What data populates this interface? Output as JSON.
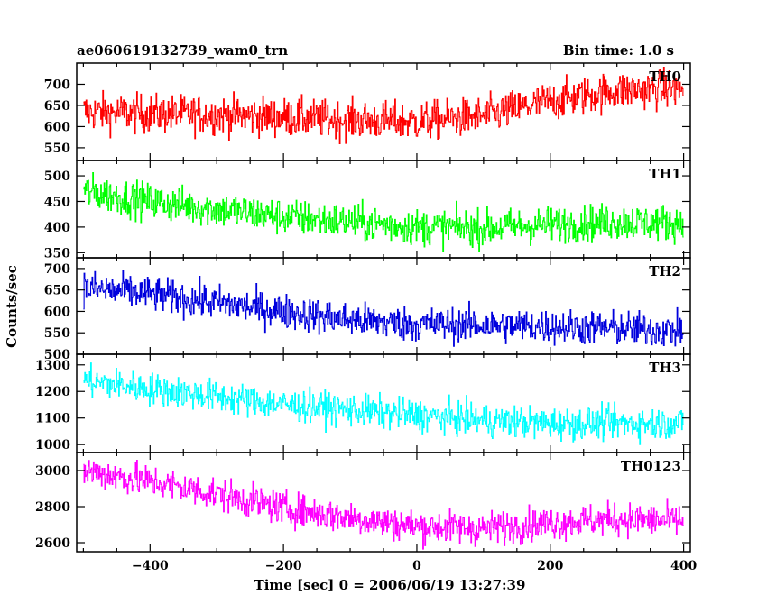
{
  "chart_data": {
    "type": "line",
    "title": "ae060619132739_wam0_trn",
    "subtitle": "Bin time: 1.0 s",
    "xlabel": "Time [sec] 0 = 2006/06/19 13:27:39",
    "ylabel": "Counts/sec",
    "xlim": [
      -510,
      410
    ],
    "x_ticks": [
      -400,
      -200,
      0,
      200,
      400
    ],
    "x_tick_labels": [
      "−400",
      "−200",
      "0",
      "200",
      "400"
    ],
    "x_start": -500,
    "x_end": 399,
    "x_step": 1,
    "grid": false,
    "series": [
      {
        "name": "TH0",
        "color": "#ff0000",
        "ylim": [
          520,
          750
        ],
        "y_ticks": [
          550,
          600,
          650,
          700
        ],
        "trend_x": [
          -500,
          -400,
          -300,
          -200,
          -100,
          0,
          100,
          200,
          300,
          400
        ],
        "trend_y": [
          635,
          630,
          628,
          622,
          615,
          612,
          625,
          660,
          685,
          690
        ],
        "noise_amplitude": 45
      },
      {
        "name": "TH1",
        "color": "#00ff00",
        "ylim": [
          340,
          530
        ],
        "y_ticks": [
          350,
          400,
          450,
          500
        ],
        "trend_x": [
          -500,
          -400,
          -300,
          -200,
          -100,
          0,
          100,
          200,
          300,
          400
        ],
        "trend_y": [
          470,
          450,
          435,
          420,
          410,
          400,
          398,
          405,
          410,
          408
        ],
        "noise_amplitude": 35
      },
      {
        "name": "TH2",
        "color": "#0000dd",
        "ylim": [
          500,
          725
        ],
        "y_ticks": [
          500,
          550,
          600,
          650,
          700
        ],
        "trend_x": [
          -500,
          -400,
          -300,
          -200,
          -100,
          0,
          100,
          200,
          300,
          400
        ],
        "trend_y": [
          655,
          640,
          620,
          600,
          580,
          570,
          568,
          565,
          560,
          555
        ],
        "noise_amplitude": 40
      },
      {
        "name": "TH3",
        "color": "#00ffff",
        "ylim": [
          970,
          1340
        ],
        "y_ticks": [
          1000,
          1100,
          1200,
          1300
        ],
        "trend_x": [
          -500,
          -400,
          -300,
          -200,
          -100,
          0,
          100,
          200,
          300,
          400
        ],
        "trend_y": [
          1240,
          1210,
          1180,
          1150,
          1130,
          1110,
          1090,
          1080,
          1080,
          1080
        ],
        "noise_amplitude": 60
      },
      {
        "name": "TH0123",
        "color": "#ff00ff",
        "ylim": [
          2550,
          3100
        ],
        "y_ticks": [
          2600,
          2800,
          3000
        ],
        "trend_x": [
          -500,
          -400,
          -300,
          -200,
          -100,
          0,
          100,
          200,
          300,
          400
        ],
        "trend_y": [
          3000,
          2940,
          2870,
          2790,
          2740,
          2690,
          2680,
          2710,
          2730,
          2720
        ],
        "noise_amplitude": 90
      }
    ]
  }
}
